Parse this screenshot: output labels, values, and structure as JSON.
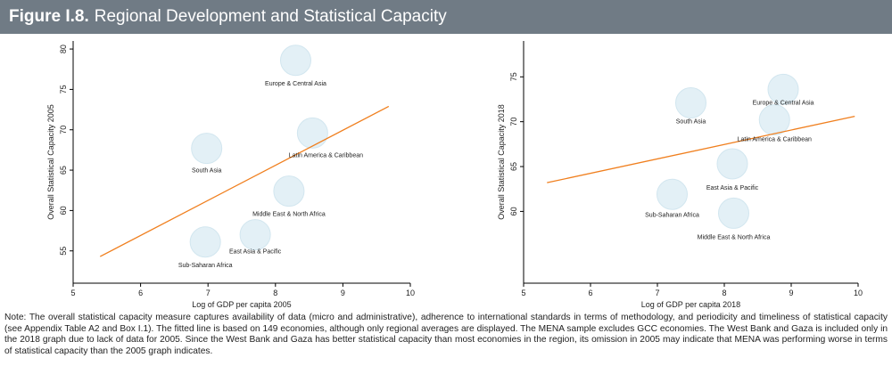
{
  "header": {
    "figure_label": "Figure I.8.",
    "title": "Regional Development and Statistical Capacity"
  },
  "note": "Note: The overall statistical capacity measure captures availability of data (micro and administrative), adherence to international standards in terms of methodology, and periodicity and timeliness of statistical capacity (see Appendix Table A2 and Box I.1). The fitted line is based on 149 economies, although only regional averages are displayed. The MENA sample excludes GCC economies. The West Bank and Gaza is included only in the 2018 graph due to lack of data for 2005. Since the West Bank and Gaza has better statistical capacity than most economies in the region, its omission in 2005 may indicate that MENA was performing worse in terms of statistical capacity than the 2005 graph indicates.",
  "colors": {
    "fit_line": "#f07f1e",
    "bubble_fill": "#e3f0f6",
    "header_bg": "#707b85"
  },
  "chart_data": [
    {
      "type": "scatter",
      "xlabel": "Log of GDP per capita 2005",
      "ylabel": "Overall Statistical Capacity 2005",
      "xlim": [
        5,
        10
      ],
      "ylim": [
        51,
        81
      ],
      "xticks": [
        5,
        6,
        7,
        8,
        9,
        10
      ],
      "yticks": [
        55,
        60,
        65,
        70,
        75,
        80
      ],
      "points": [
        {
          "label": "Europe & Central Asia",
          "x": 8.3,
          "y": 78.6
        },
        {
          "label": "Latin America & Caribbean",
          "x": 8.55,
          "y": 69.6
        },
        {
          "label": "South Asia",
          "x": 6.98,
          "y": 67.7
        },
        {
          "label": "Middle East & North Africa",
          "x": 8.2,
          "y": 62.4
        },
        {
          "label": "East Asia & Pacific",
          "x": 7.7,
          "y": 57.0
        },
        {
          "label": "Sub-Saharan Africa",
          "x": 6.96,
          "y": 56.1
        }
      ],
      "fit_line": {
        "x": [
          5.4,
          9.68
        ],
        "y": [
          54.3,
          72.9
        ]
      }
    },
    {
      "type": "scatter",
      "xlabel": "Log of GDP per capita 2018",
      "ylabel": "Overall Statistical Capacity 2018",
      "xlim": [
        5,
        10
      ],
      "ylim": [
        52,
        79
      ],
      "xticks": [
        5,
        6,
        7,
        8,
        9,
        10
      ],
      "yticks": [
        60,
        65,
        70,
        75
      ],
      "points": [
        {
          "label": "Europe & Central Asia",
          "x": 8.88,
          "y": 73.6
        },
        {
          "label": "South Asia",
          "x": 7.5,
          "y": 72.1
        },
        {
          "label": "Latin America & Caribbean",
          "x": 8.75,
          "y": 70.2
        },
        {
          "label": "East Asia & Pacific",
          "x": 8.12,
          "y": 65.3
        },
        {
          "label": "Sub-Saharan Africa",
          "x": 7.22,
          "y": 61.9
        },
        {
          "label": "Middle East & North Africa",
          "x": 8.14,
          "y": 59.8
        }
      ],
      "fit_line": {
        "x": [
          5.35,
          9.95
        ],
        "y": [
          63.2,
          70.6
        ]
      }
    }
  ]
}
